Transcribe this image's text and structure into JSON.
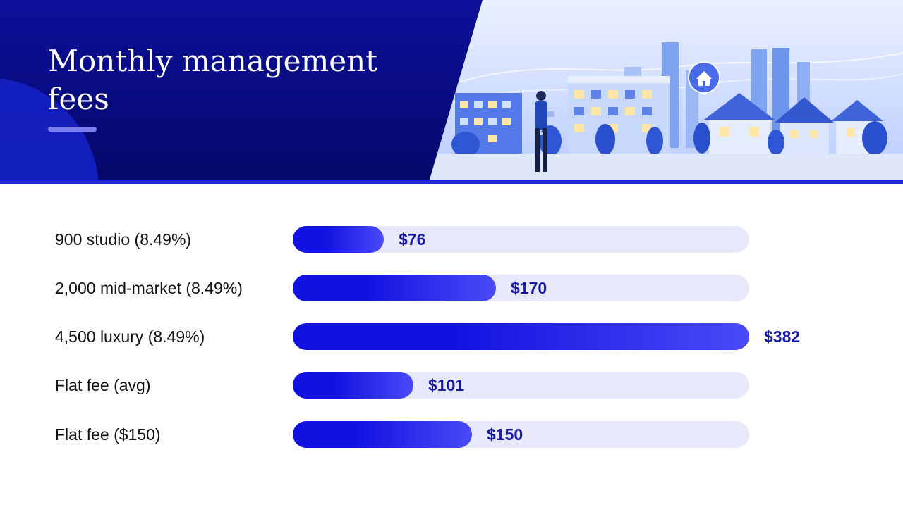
{
  "header": {
    "title": "Monthly management fees"
  },
  "colors": {
    "header_panel": "#0a0f8a",
    "bar_dark": "#1212e0",
    "bar_light": "#4a4af8",
    "track": "#e8e8fb",
    "value_text": "#1a1aa8"
  },
  "icons": [
    "house-icon"
  ],
  "chart_data": {
    "type": "bar",
    "orientation": "horizontal",
    "categories": [
      "900 studio (8.49%)",
      "2,000 mid-market (8.49%)",
      "4,500 luxury (8.49%)",
      "Flat fee (avg)",
      "Flat fee ($150)"
    ],
    "values": [
      76,
      170,
      382,
      101,
      150
    ],
    "value_labels": [
      "$76",
      "$170",
      "$382",
      "$101",
      "$150"
    ],
    "xlim": [
      0,
      382
    ],
    "grid": false
  }
}
